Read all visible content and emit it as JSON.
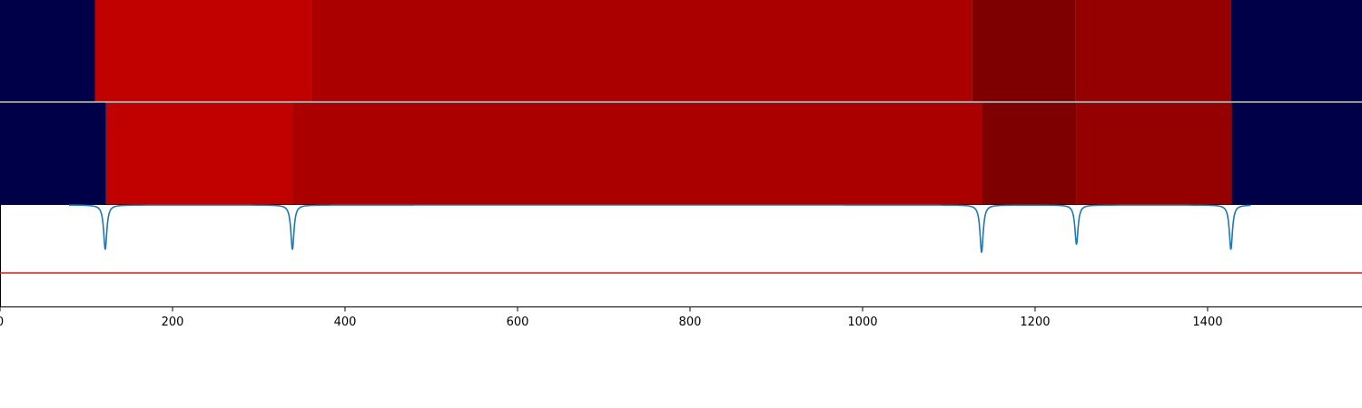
{
  "chart_data": {
    "type": "heatmap",
    "xlim": [
      0,
      1579
    ],
    "x_ticks": [
      0,
      200,
      400,
      600,
      800,
      1000,
      1200,
      1400
    ],
    "tick_labels": [
      "0",
      "200",
      "400",
      "600",
      "800",
      "1000",
      "1200",
      "1400"
    ],
    "grid": false,
    "legend": "none",
    "colors": {
      "background_segment": "#000048",
      "level_1": "#c10000",
      "level_2": "#ab0000",
      "level_3": "#7e0000",
      "level_4": "#950000",
      "signal_line": "#1f77b4",
      "threshold_line": "#e8141a"
    },
    "tracks": [
      {
        "segments": [
          {
            "start": 0,
            "end": 110,
            "color": "#000048"
          },
          {
            "start": 110,
            "end": 361,
            "color": "#c10000"
          },
          {
            "start": 361,
            "end": 1127,
            "color": "#ab0000"
          },
          {
            "start": 1127,
            "end": 1247,
            "color": "#7e0000"
          },
          {
            "start": 1247,
            "end": 1427,
            "color": "#950000"
          },
          {
            "start": 1427,
            "end": 1579,
            "color": "#000048"
          }
        ]
      },
      {
        "segments": [
          {
            "start": 0,
            "end": 123,
            "color": "#000048"
          },
          {
            "start": 123,
            "end": 339,
            "color": "#c10000"
          },
          {
            "start": 339,
            "end": 1139,
            "color": "#ab0000"
          },
          {
            "start": 1139,
            "end": 1248,
            "color": "#7e0000"
          },
          {
            "start": 1248,
            "end": 1428,
            "color": "#950000"
          },
          {
            "start": 1428,
            "end": 1579,
            "color": "#000048"
          }
        ]
      }
    ],
    "signal": {
      "baseline": 0.0,
      "ylim": [
        -1.0,
        0.0
      ],
      "edge_taper": [
        80,
        1450
      ],
      "dips": [
        {
          "x": 122,
          "depth": 0.44
        },
        {
          "x": 339,
          "depth": 0.44
        },
        {
          "x": 1138,
          "depth": 0.47
        },
        {
          "x": 1248,
          "depth": 0.39
        },
        {
          "x": 1427,
          "depth": 0.44
        }
      ],
      "threshold": -0.67
    }
  }
}
